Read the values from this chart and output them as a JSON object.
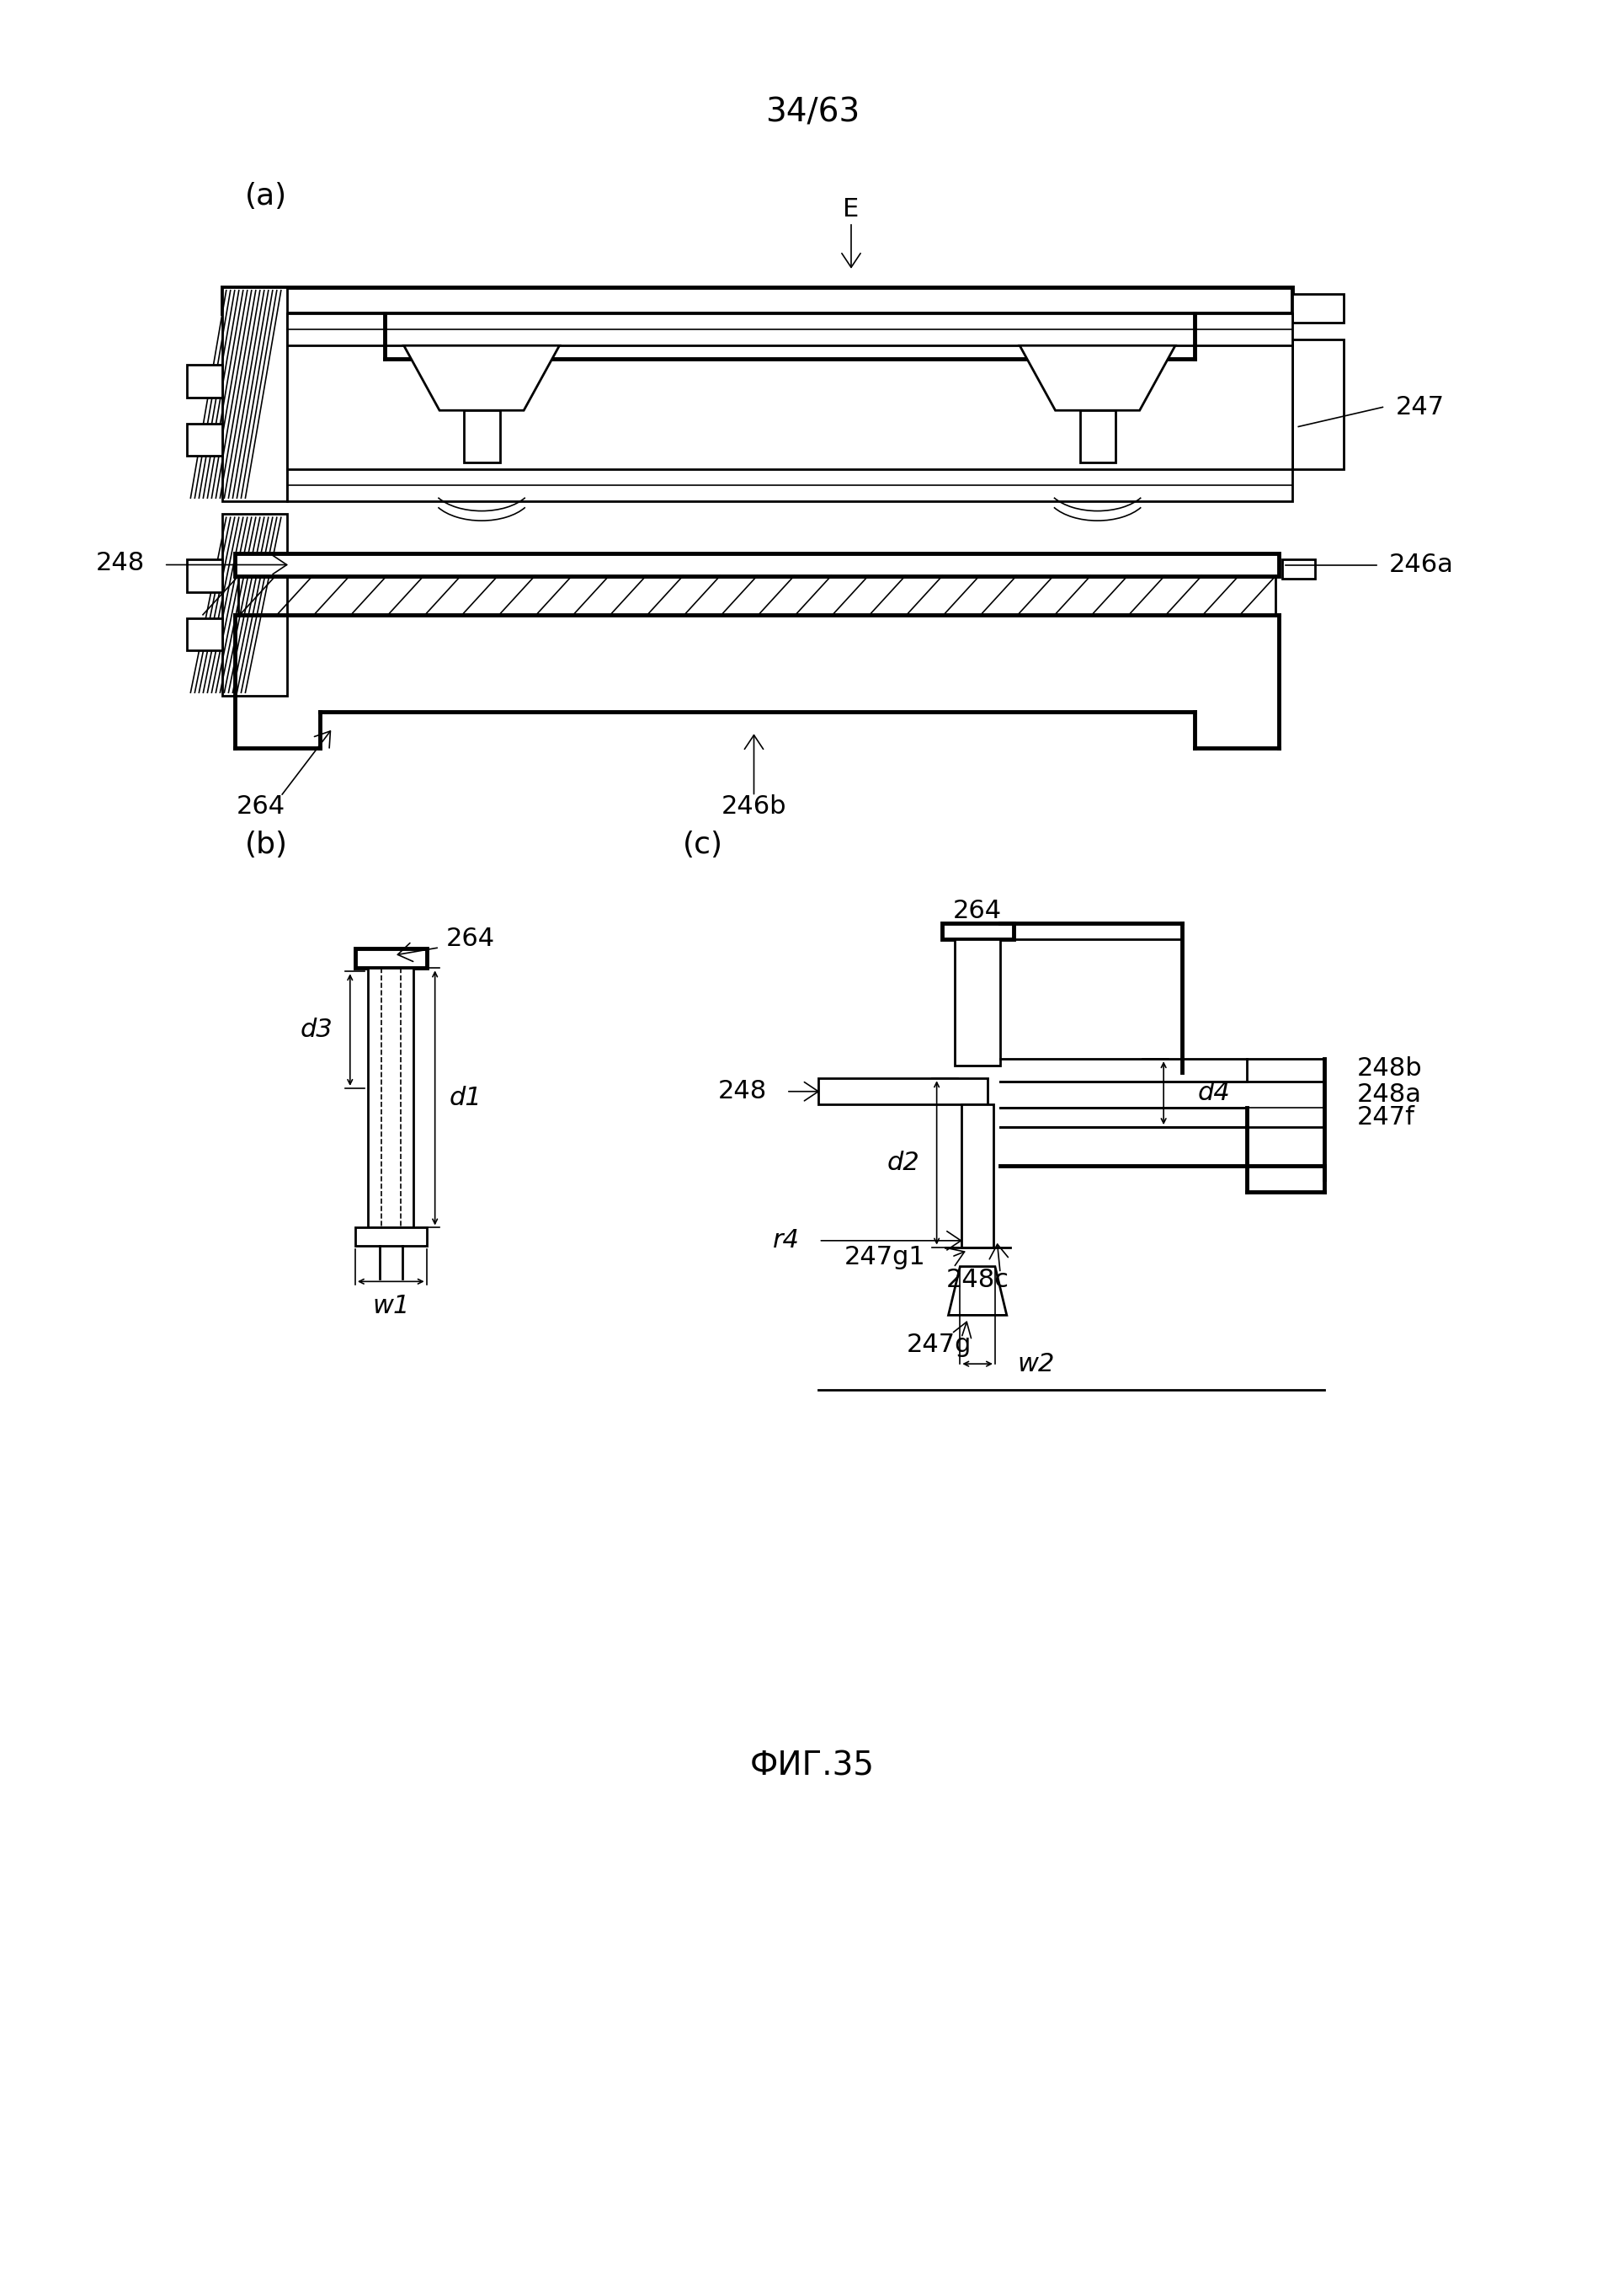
{
  "page_label": "34/63",
  "fig_label": "ФИГ.35",
  "background": "#ffffff",
  "lw_thick": 3.5,
  "lw_med": 2.0,
  "lw_thin": 1.2,
  "lw_xtra": 1.0,
  "ref_fs": 22,
  "sub_fs": 26,
  "page_fs": 28
}
